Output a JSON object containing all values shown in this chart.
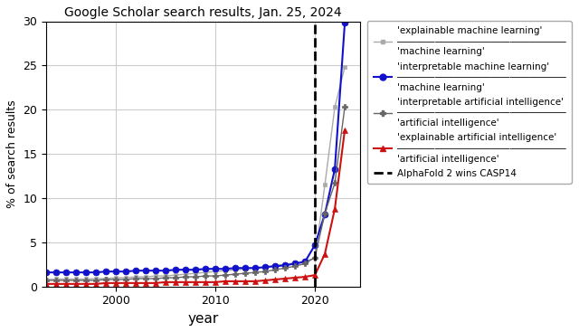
{
  "title": "Google Scholar search results, Jan. 25, 2024",
  "xlabel": "year",
  "ylabel": "% of search results",
  "ylim": [
    0,
    30
  ],
  "xlim": [
    1993,
    2024.5
  ],
  "vline_x": 2020,
  "vline_label": "AlphaFold 2 wins CASP14",
  "series": {
    "expl_ml": {
      "color": "#aaaaaa",
      "marker": "s",
      "markersize": 3.5,
      "linewidth": 1.0
    },
    "interp_ml": {
      "color": "#1111cc",
      "marker": "o",
      "markersize": 5,
      "linewidth": 1.5
    },
    "interp_ai": {
      "color": "#666666",
      "marker": "P",
      "markersize": 5,
      "linewidth": 1.0
    },
    "expl_ai": {
      "color": "#cc1111",
      "marker": "^",
      "markersize": 5,
      "linewidth": 1.5
    }
  },
  "years": [
    1993,
    1994,
    1995,
    1996,
    1997,
    1998,
    1999,
    2000,
    2001,
    2002,
    2003,
    2004,
    2005,
    2006,
    2007,
    2008,
    2009,
    2010,
    2011,
    2012,
    2013,
    2014,
    2015,
    2016,
    2017,
    2018,
    2019,
    2020,
    2021,
    2022,
    2023
  ],
  "expl_ml_vals": [
    0.8,
    0.85,
    0.85,
    0.85,
    0.85,
    0.9,
    0.9,
    1.0,
    1.0,
    1.1,
    1.1,
    1.2,
    1.2,
    1.3,
    1.4,
    1.5,
    1.6,
    1.7,
    1.8,
    1.9,
    2.0,
    2.1,
    2.2,
    2.4,
    2.5,
    2.7,
    2.9,
    3.2,
    11.5,
    20.3,
    24.8
  ],
  "interp_ml_vals": [
    1.6,
    1.6,
    1.6,
    1.6,
    1.6,
    1.6,
    1.7,
    1.7,
    1.7,
    1.8,
    1.8,
    1.8,
    1.8,
    1.9,
    1.9,
    1.9,
    2.0,
    2.0,
    2.0,
    2.1,
    2.1,
    2.1,
    2.2,
    2.3,
    2.4,
    2.6,
    2.8,
    4.7,
    8.2,
    13.3,
    29.8
  ],
  "interp_ai_vals": [
    0.7,
    0.7,
    0.7,
    0.7,
    0.7,
    0.7,
    0.8,
    0.8,
    0.8,
    0.9,
    0.9,
    0.9,
    1.0,
    1.0,
    1.1,
    1.1,
    1.2,
    1.2,
    1.3,
    1.4,
    1.5,
    1.6,
    1.7,
    1.9,
    2.1,
    2.3,
    2.6,
    3.3,
    8.3,
    11.7,
    20.3
  ],
  "expl_ai_vals": [
    0.3,
    0.3,
    0.3,
    0.3,
    0.3,
    0.3,
    0.4,
    0.4,
    0.4,
    0.4,
    0.4,
    0.4,
    0.5,
    0.5,
    0.5,
    0.5,
    0.5,
    0.5,
    0.6,
    0.6,
    0.6,
    0.6,
    0.7,
    0.8,
    0.9,
    1.0,
    1.1,
    1.3,
    3.7,
    8.8,
    17.7
  ],
  "bg_color": "#ffffff",
  "grid_color": "#cccccc",
  "legend_bg": "#ffffff",
  "legend_edge": "#aaaaaa",
  "legend_labels": [
    [
      "'explainable machine learning'",
      "'machine learning'"
    ],
    [
      "'interpretable machine learning'",
      "'machine learning'"
    ],
    [
      "'interpretable artificial intelligence'",
      "'artificial intelligence'"
    ],
    [
      "'explainable artificial intelligence'",
      "'artificial intelligence'"
    ]
  ]
}
